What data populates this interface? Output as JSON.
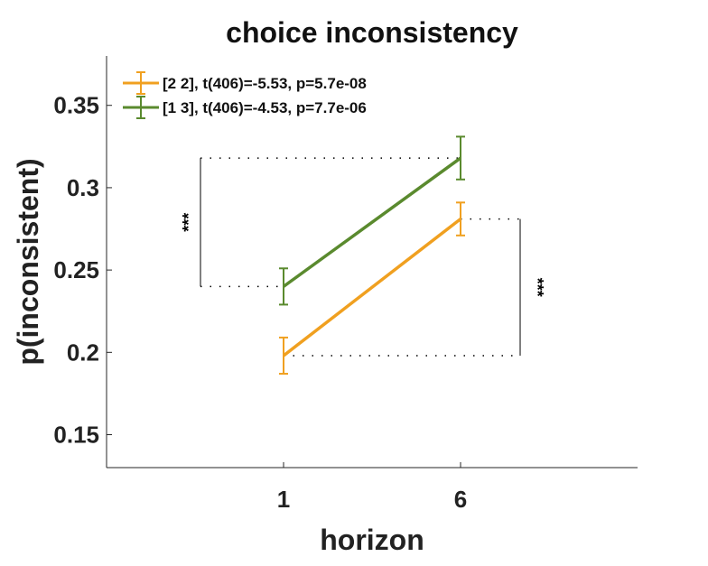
{
  "chart_data": {
    "type": "line",
    "title": "choice inconsistency",
    "xlabel": "horizon",
    "ylabel": "p(inconsistent)",
    "categories": [
      "1",
      "6"
    ],
    "xlim": [
      0,
      3
    ],
    "ylim": [
      0.13,
      0.38
    ],
    "yticks": [
      0.15,
      0.2,
      0.25,
      0.3,
      0.35
    ],
    "ytick_labels": [
      "0.15",
      "0.2",
      "0.25",
      "0.3",
      "0.35"
    ],
    "grid": false,
    "legend": "top-left",
    "series": [
      {
        "name": "[2 2], t(406)=-5.53, p=5.7e-08",
        "color": "#F0A020",
        "values": [
          0.198,
          0.281
        ],
        "error": [
          0.011,
          0.01
        ]
      },
      {
        "name": "[1 3], t(406)=-4.53, p=7.7e-06",
        "color": "#5A8A2E",
        "values": [
          0.24,
          0.318
        ],
        "error": [
          0.011,
          0.013
        ]
      }
    ],
    "annotations": [
      {
        "text": "***",
        "compares": "[1 3] horizon 1 vs horizon 6",
        "side": "left"
      },
      {
        "text": "***",
        "compares": "[2 2] horizon 1 vs horizon 6",
        "side": "right"
      }
    ]
  }
}
